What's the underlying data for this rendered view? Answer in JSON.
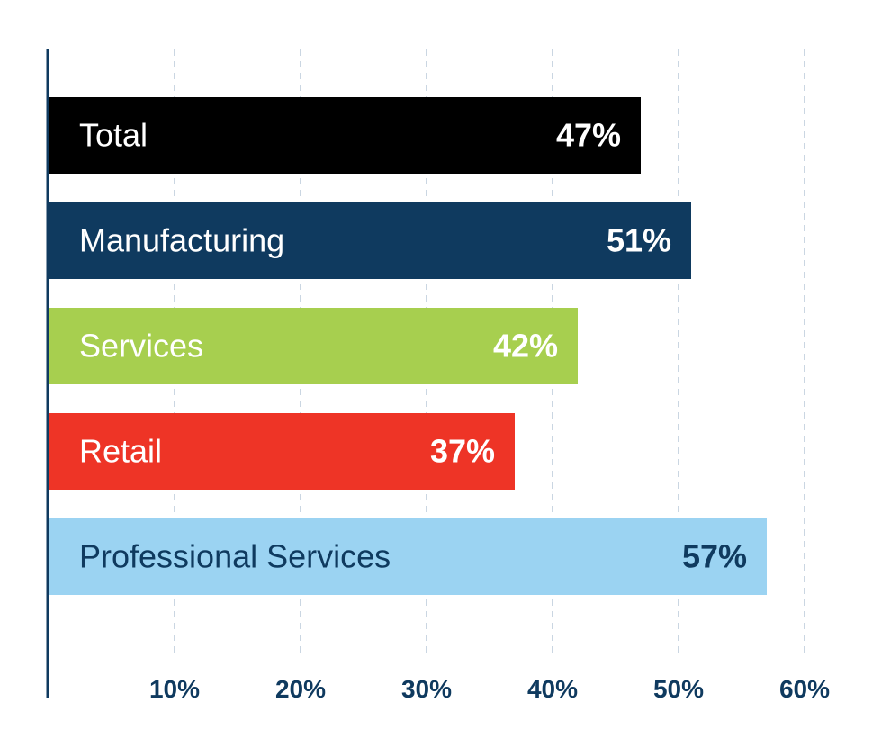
{
  "chart_data": {
    "type": "bar",
    "orientation": "horizontal",
    "categories": [
      "Total",
      "Manufacturing",
      "Services",
      "Retail",
      "Professional Services"
    ],
    "values": [
      47,
      51,
      42,
      37,
      57
    ],
    "value_labels": [
      "47%",
      "51%",
      "42%",
      "37%",
      "57%"
    ],
    "bar_colors": [
      "#000000",
      "#0f3a5f",
      "#a7cf4f",
      "#ee3426",
      "#9bd3f2"
    ],
    "label_colors": [
      "#ffffff",
      "#ffffff",
      "#ffffff",
      "#ffffff",
      "#0f3a5f"
    ],
    "xlim": [
      0,
      60
    ],
    "xticks": [
      10,
      20,
      30,
      40,
      50,
      60
    ],
    "xtick_labels": [
      "10%",
      "20%",
      "30%",
      "40%",
      "50%",
      "60%"
    ],
    "grid": "vertical-dashed",
    "axis_color": "#0f3a5f",
    "grid_color": "#b9c9d8",
    "tick_label_color": "#0f3a5f",
    "title": "",
    "xlabel": "",
    "ylabel": ""
  }
}
